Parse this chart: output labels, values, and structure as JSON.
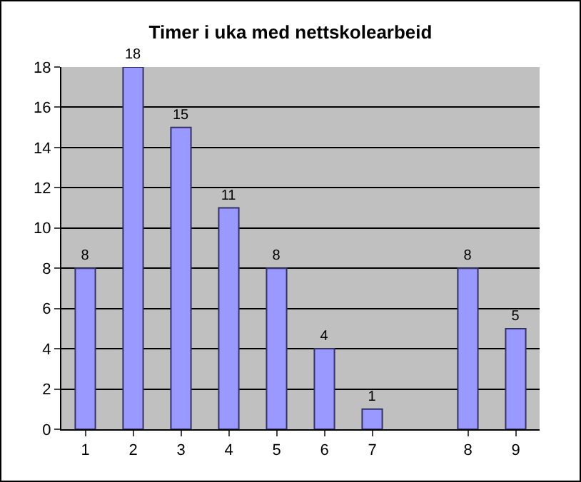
{
  "chart_data": {
    "type": "bar",
    "title": "Timer i uka med nettskolearbeid",
    "categories": [
      "1",
      "2",
      "3",
      "4",
      "5",
      "6",
      "7",
      null,
      "8",
      "9"
    ],
    "values": [
      8,
      18,
      15,
      11,
      8,
      4,
      1,
      null,
      8,
      5
    ],
    "color": "#9999ff",
    "ylim": [
      0,
      18
    ],
    "yticks": [
      0,
      2,
      4,
      6,
      8,
      10,
      12,
      14,
      16,
      18
    ],
    "grid": "y",
    "data_labels": true
  }
}
